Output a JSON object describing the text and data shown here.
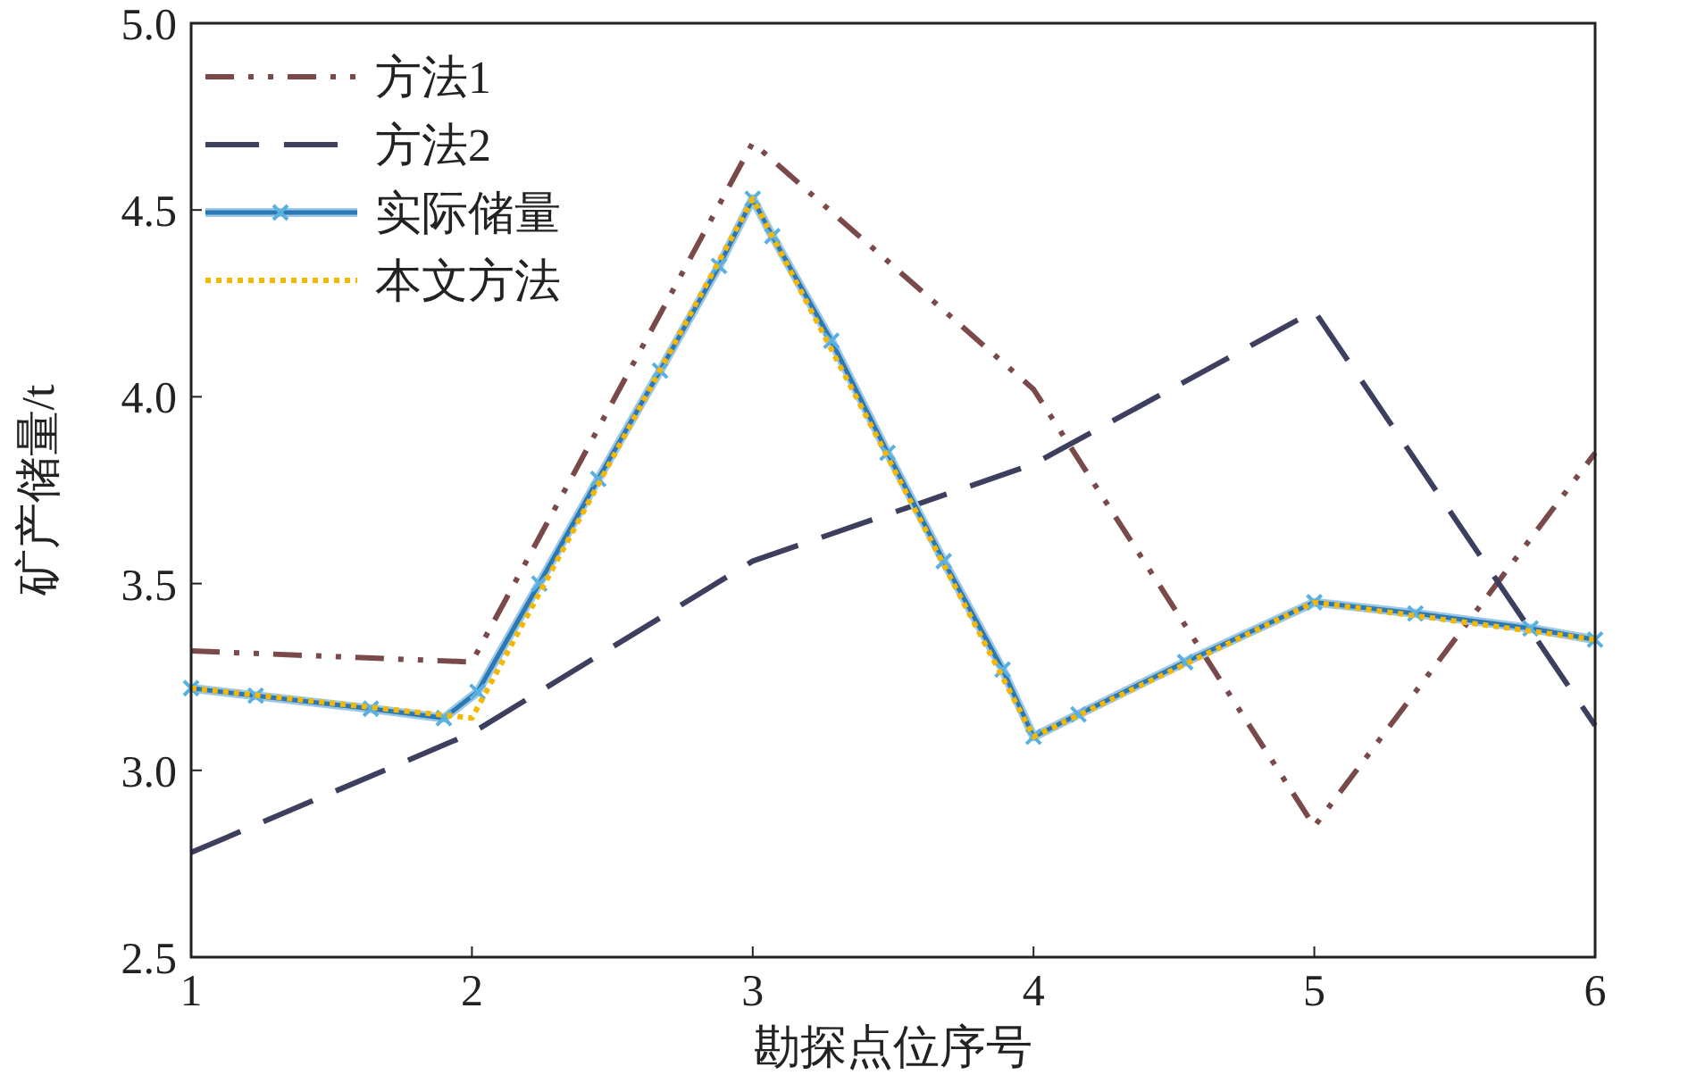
{
  "chart_data": {
    "type": "line",
    "xlabel": "勘探点位序号",
    "ylabel": "矿产储量/t",
    "xlim": [
      1,
      6
    ],
    "ylim": [
      2.5,
      5.0
    ],
    "xticks": [
      1,
      2,
      3,
      4,
      5,
      6
    ],
    "yticks": [
      2.5,
      {
        "value": 3,
        "label": "3.0"
      },
      3.5,
      {
        "value": 4,
        "label": "4.0"
      },
      4.5,
      {
        "value": 5,
        "label": "5.0"
      }
    ],
    "x": [
      1,
      2,
      3,
      4,
      5,
      6
    ],
    "legend": "top left",
    "grid": false,
    "series": [
      {
        "name": "方法1",
        "color": "#7a4a4a",
        "line_style": "dashdot",
        "marker": "none",
        "values": [
          3.32,
          3.29,
          4.68,
          4.02,
          2.85,
          3.85
        ]
      },
      {
        "name": "方法2",
        "color": "#3c3f5e",
        "line_style": "dashed",
        "marker": "none",
        "values": [
          2.78,
          3.1,
          3.56,
          3.82,
          4.23,
          3.12
        ]
      },
      {
        "name": "实际储量",
        "color": "#2b78b4",
        "line_style": "solid",
        "marker": "cross",
        "x": [
          1,
          1.23,
          1.64,
          1.9,
          2.02,
          2.24,
          2.45,
          2.67,
          2.88,
          3,
          3.07,
          3.28,
          3.48,
          3.68,
          3.89,
          4,
          4.16,
          4.54,
          5,
          5.36,
          5.77,
          6
        ],
        "values": [
          3.22,
          3.2,
          3.165,
          3.14,
          3.21,
          3.5,
          3.78,
          4.07,
          4.35,
          4.53,
          4.43,
          4.15,
          3.85,
          3.56,
          3.27,
          3.09,
          3.15,
          3.29,
          3.45,
          3.42,
          3.38,
          3.35
        ]
      },
      {
        "name": "本文方法",
        "color": "#f5b700",
        "line_style": "dotted",
        "marker": "none",
        "values": [
          3.22,
          3.14,
          4.53,
          3.09,
          3.45,
          3.35
        ]
      }
    ]
  }
}
